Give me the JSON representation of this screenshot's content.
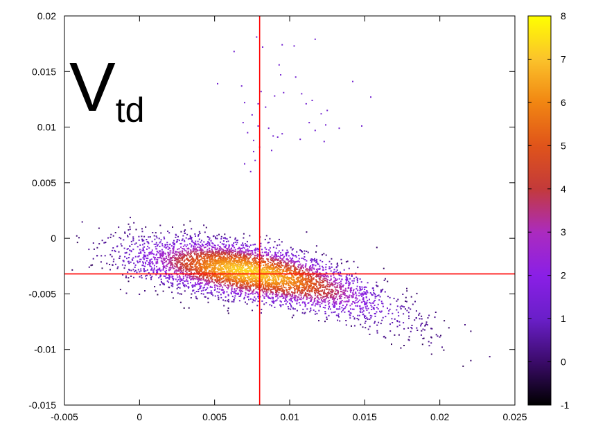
{
  "chart_data": {
    "type": "scatter",
    "title": "",
    "xlabel": "",
    "ylabel": "",
    "xlim": [
      -0.005,
      0.025
    ],
    "ylim": [
      -0.015,
      0.02
    ],
    "x_ticks": [
      "-0.005",
      "0",
      "0.005",
      "0.01",
      "0.015",
      "0.02",
      "0.025"
    ],
    "x_tick_values": [
      -0.005,
      0,
      0.005,
      0.01,
      0.015,
      0.02,
      0.025
    ],
    "y_ticks": [
      "-0.015",
      "-0.01",
      "-0.005",
      "0",
      "0.005",
      "0.01",
      "0.015",
      "0.02"
    ],
    "y_tick_values": [
      -0.015,
      -0.01,
      -0.005,
      0,
      0.005,
      0.01,
      0.015,
      0.02
    ],
    "annotation": {
      "main": "V",
      "subscript": "td"
    },
    "reference_lines": {
      "x": 0.008,
      "y": -0.0032,
      "color": "#ff0000"
    },
    "density": {
      "description_center": [
        0.0072,
        -0.003
      ],
      "core_peak_value": 7.2,
      "scatter_outliers": [
        [
          0.0063,
          0.0168
        ],
        [
          0.0078,
          0.0181
        ],
        [
          0.0082,
          0.0172
        ],
        [
          0.0093,
          0.0156
        ],
        [
          0.0095,
          0.0174
        ],
        [
          0.0103,
          0.0173
        ],
        [
          0.0117,
          0.0179
        ],
        [
          0.0052,
          0.0139
        ],
        [
          0.0068,
          0.0137
        ],
        [
          0.007,
          0.0122
        ],
        [
          0.0075,
          0.0111
        ],
        [
          0.0079,
          0.0121
        ],
        [
          0.0081,
          0.0132
        ],
        [
          0.0084,
          0.0118
        ],
        [
          0.009,
          0.0128
        ],
        [
          0.0094,
          0.0147
        ],
        [
          0.0096,
          0.0131
        ],
        [
          0.0104,
          0.0145
        ],
        [
          0.0108,
          0.013
        ],
        [
          0.0111,
          0.0121
        ],
        [
          0.0115,
          0.0124
        ],
        [
          0.0121,
          0.0112
        ],
        [
          0.0124,
          0.0102
        ],
        [
          0.0133,
          0.0099
        ],
        [
          0.0069,
          0.0104
        ],
        [
          0.0072,
          0.0095
        ],
        [
          0.0076,
          0.0088
        ],
        [
          0.0079,
          0.0101
        ],
        [
          0.0086,
          0.0099
        ],
        [
          0.0089,
          0.0092
        ],
        [
          0.0092,
          0.0091
        ],
        [
          0.0095,
          0.0094
        ],
        [
          0.0107,
          0.0089
        ],
        [
          0.0113,
          0.0104
        ],
        [
          0.0117,
          0.0097
        ],
        [
          0.0123,
          0.0087
        ],
        [
          0.007,
          0.0067
        ],
        [
          0.0074,
          0.006
        ],
        [
          0.0076,
          0.0078
        ],
        [
          0.0077,
          0.007
        ],
        [
          0.0142,
          0.0141
        ],
        [
          0.0154,
          0.0127
        ],
        [
          0.0148,
          0.0101
        ],
        [
          0.0125,
          0.0115
        ],
        [
          0.008,
          0.0082
        ],
        [
          0.0088,
          0.0079
        ]
      ]
    }
  },
  "colorbar": {
    "min": -1,
    "max": 8,
    "tick_labels": [
      "-1",
      "0",
      "1",
      "2",
      "3",
      "4",
      "5",
      "6",
      "7",
      "8"
    ],
    "tick_values": [
      -1,
      0,
      1,
      2,
      3,
      4,
      5,
      6,
      7,
      8
    ],
    "colors": [
      "#000000",
      "#3b0b6a",
      "#6a1fc9",
      "#8a1fe6",
      "#ab2bbf",
      "#c33a3a",
      "#e0541a",
      "#f18612",
      "#fbc32b",
      "#ffff00"
    ]
  }
}
